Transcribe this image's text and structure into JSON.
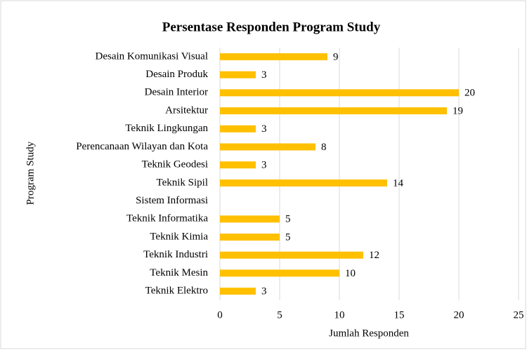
{
  "chart_data": {
    "type": "bar",
    "orientation": "horizontal",
    "title": "Persentase Responden Program Study",
    "xlabel": "Jumlah Responden",
    "ylabel": "Program Study",
    "categories": [
      "Desain Komunikasi Visual",
      "Desain Produk",
      "Desain Interior",
      "Arsitektur",
      "Teknik Lingkungan",
      "Perencanaan Wilayan dan Kota",
      "Teknik Geodesi",
      "Teknik Sipil",
      "Sistem Informasi",
      "Teknik Informatika",
      "Teknik Kimia",
      "Teknik Industri",
      "Teknik Mesin",
      "Teknik Elektro"
    ],
    "values": [
      9,
      3,
      20,
      19,
      3,
      8,
      3,
      14,
      null,
      5,
      5,
      12,
      10,
      3
    ],
    "color": "#ffc000",
    "xlim": [
      0,
      25
    ],
    "xticks": [
      0,
      5,
      10,
      15,
      20,
      25
    ],
    "grid": true
  }
}
